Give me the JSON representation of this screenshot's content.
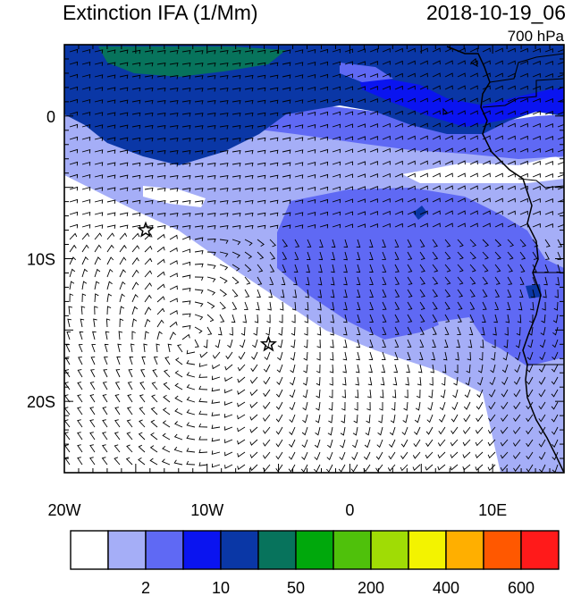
{
  "title": "Extinction IFA (1/Mm)",
  "datetime": "2018-10-19_06",
  "level": "700 hPa",
  "map": {
    "lon_range": [
      -20,
      15
    ],
    "lat_range": [
      -25,
      5
    ],
    "x_ticks": [
      {
        "value": -20,
        "label": "20W"
      },
      {
        "value": -10,
        "label": "10W"
      },
      {
        "value": 0,
        "label": "0"
      },
      {
        "value": 10,
        "label": "10E"
      }
    ],
    "y_ticks": [
      {
        "value": 0,
        "label": "0"
      },
      {
        "value": -10,
        "label": "10S"
      },
      {
        "value": -20,
        "label": "20S"
      }
    ],
    "markers": [
      {
        "name": "star-marker-1",
        "lon": -14.3,
        "lat": -8.0
      },
      {
        "name": "star-marker-2",
        "lon": -5.7,
        "lat": -16.0
      }
    ]
  },
  "colorbar": {
    "colors": [
      "#ffffff",
      "#a5aef7",
      "#5f69f4",
      "#0a14f0",
      "#0a37a6",
      "#07735c",
      "#00a80c",
      "#4fc10b",
      "#a0dc05",
      "#f3f300",
      "#ffaf00",
      "#ff5800",
      "#ff1a1a"
    ],
    "labels": [
      {
        "after_box": 1,
        "text": "2"
      },
      {
        "after_box": 3,
        "text": "10"
      },
      {
        "after_box": 5,
        "text": "50"
      },
      {
        "after_box": 7,
        "text": "200"
      },
      {
        "after_box": 9,
        "text": "400"
      },
      {
        "after_box": 11,
        "text": "600"
      }
    ]
  }
}
